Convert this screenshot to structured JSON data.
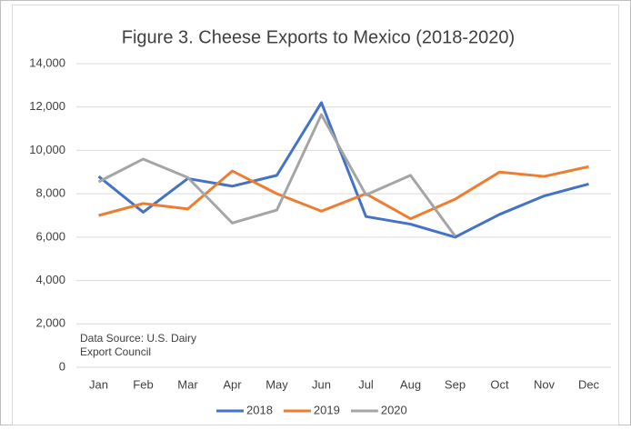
{
  "chart_data": {
    "type": "line",
    "title": "Figure 3. Cheese Exports to Mexico (2018-2020)",
    "annotation": [
      "Data Source: U.S. Dairy",
      "Export Council"
    ],
    "categories": [
      "Jan",
      "Feb",
      "Mar",
      "Apr",
      "May",
      "Jun",
      "Jul",
      "Aug",
      "Sep",
      "Oct",
      "Nov",
      "Dec"
    ],
    "series": [
      {
        "name": "2018",
        "color": "#4472c4",
        "values": [
          8800,
          7150,
          8700,
          8350,
          8850,
          12200,
          6950,
          6600,
          6000,
          7050,
          7900,
          8450
        ]
      },
      {
        "name": "2019",
        "color": "#ed7d31",
        "values": [
          7000,
          7550,
          7300,
          9050,
          8000,
          7200,
          8000,
          6850,
          7750,
          9000,
          8800,
          9250
        ]
      },
      {
        "name": "2020",
        "color": "#a5a5a5",
        "values": [
          8550,
          9600,
          8750,
          6650,
          7250,
          11650,
          7950,
          8850,
          6050,
          null,
          null,
          null
        ]
      }
    ],
    "ylim": [
      0,
      14000
    ],
    "yticks": [
      0,
      {
        "value": 2000,
        "label": "2,000"
      },
      {
        "value": 4000,
        "label": "4,000"
      },
      {
        "value": 6000,
        "label": "6,000"
      },
      {
        "value": 8000,
        "label": "8,000"
      },
      {
        "value": 10000,
        "label": "10,000"
      },
      {
        "value": 12000,
        "label": "12,000"
      },
      {
        "value": 14000,
        "label": "14,000"
      }
    ],
    "grid": true,
    "legend": "bottom"
  }
}
